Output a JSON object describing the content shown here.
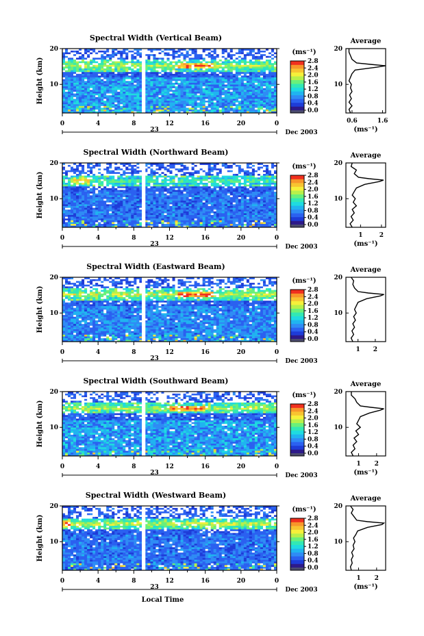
{
  "figure": {
    "xaxis_label": "Local Time",
    "date_label": "Dec 2003",
    "day_label": "23",
    "unit_label": "(ms⁻¹)",
    "ylabel": "Height (km)",
    "avg_title": "Average"
  },
  "colors": {
    "colormap": [
      "#2d1a8a",
      "#1e3cd8",
      "#2b61f0",
      "#2f8cf5",
      "#20b4f0",
      "#1fdbe0",
      "#32e8b4",
      "#6af07a",
      "#b8f04a",
      "#f6f03a",
      "#f8c430",
      "#f8962a",
      "#f0301e"
    ],
    "cbar_bottom": "#4b4b6e",
    "plot_bg": "#3055e0",
    "gap": "#ffffff"
  },
  "chart_data": [
    {
      "type": "heatmap",
      "title": "Spectral Width (Vertical Beam)",
      "x_range_hours": [
        0,
        24
      ],
      "x_ticks": [
        "0",
        "4",
        "8",
        "12",
        "16",
        "20",
        "0"
      ],
      "y_range_km": [
        2,
        20
      ],
      "y_ticks": [
        "20",
        "10"
      ],
      "colorbar": {
        "range": [
          0.0,
          2.8
        ],
        "ticks": [
          "2.8",
          "2.4",
          "2.0",
          "1.6",
          "1.2",
          "0.8",
          "0.4",
          "0.0"
        ]
      },
      "data_gap_hours": [
        8.9,
        9.3
      ],
      "features": [
        {
          "name": "tropopause layer",
          "height_km": 15.2,
          "value": 2.6,
          "strongest_hours": [
            13,
            17
          ]
        },
        {
          "name": "lower troposphere",
          "height_km_range": [
            2,
            12
          ],
          "value": 0.8
        },
        {
          "name": "upper region",
          "height_km_range": [
            16,
            20
          ],
          "value": 0.3,
          "sparse": true
        }
      ],
      "average": {
        "title": "Average",
        "xlabel": "(ms⁻¹)",
        "x_range": [
          0.4,
          1.7
        ],
        "x_ticks": [
          "0.6",
          "1.6"
        ],
        "y_ticks": [
          "20",
          "10"
        ],
        "profile": [
          [
            0.55,
            2
          ],
          [
            0.5,
            3
          ],
          [
            0.6,
            4
          ],
          [
            0.5,
            5
          ],
          [
            0.58,
            6
          ],
          [
            0.52,
            7
          ],
          [
            0.6,
            8
          ],
          [
            0.55,
            9
          ],
          [
            0.58,
            10
          ],
          [
            0.5,
            11
          ],
          [
            0.55,
            12
          ],
          [
            0.6,
            13
          ],
          [
            0.7,
            14
          ],
          [
            1.4,
            14.8
          ],
          [
            1.7,
            15.2
          ],
          [
            1.2,
            15.6
          ],
          [
            0.75,
            16
          ],
          [
            0.6,
            17
          ],
          [
            0.55,
            18
          ],
          [
            0.5,
            19
          ],
          [
            0.5,
            20
          ]
        ]
      }
    },
    {
      "type": "heatmap",
      "title": "Spectral Width (Northward Beam)",
      "x_range_hours": [
        0,
        24
      ],
      "x_ticks": [
        "0",
        "4",
        "8",
        "12",
        "16",
        "20",
        "0"
      ],
      "y_range_km": [
        2,
        20
      ],
      "y_ticks": [
        "20",
        "10"
      ],
      "colorbar": {
        "range": [
          0.0,
          2.8
        ],
        "ticks": [
          "2.8",
          "2.4",
          "2.0",
          "1.6",
          "1.2",
          "0.8",
          "0.4",
          "0.0"
        ]
      },
      "data_gap_hours": [
        8.9,
        9.3
      ],
      "features": [
        {
          "name": "tropopause layer",
          "height_km": 15.0,
          "value": 2.2,
          "strongest_hours": [
            1,
            3
          ]
        },
        {
          "name": "lower troposphere",
          "height_km_range": [
            2,
            12
          ],
          "value": 0.6
        },
        {
          "name": "upper region",
          "height_km_range": [
            16,
            20
          ],
          "value": 0.3,
          "sparse": true
        }
      ],
      "average": {
        "title": "Average",
        "xlabel": "(ms⁻¹)",
        "x_range": [
          0.3,
          2.2
        ],
        "x_ticks": [
          "1",
          "2"
        ],
        "y_ticks": [
          "20",
          "10"
        ],
        "profile": [
          [
            0.6,
            2
          ],
          [
            0.5,
            3
          ],
          [
            0.65,
            4
          ],
          [
            0.55,
            5
          ],
          [
            0.7,
            6
          ],
          [
            0.6,
            7
          ],
          [
            0.8,
            8
          ],
          [
            0.65,
            9
          ],
          [
            0.75,
            10
          ],
          [
            0.6,
            11
          ],
          [
            0.7,
            12
          ],
          [
            0.8,
            13
          ],
          [
            1.2,
            14
          ],
          [
            1.9,
            14.8
          ],
          [
            2.1,
            15.2
          ],
          [
            1.4,
            15.6
          ],
          [
            0.9,
            16
          ],
          [
            0.7,
            17
          ],
          [
            0.8,
            18
          ],
          [
            0.55,
            19
          ],
          [
            0.6,
            20
          ]
        ]
      }
    },
    {
      "type": "heatmap",
      "title": "Spectral Width (Eastward Beam)",
      "x_range_hours": [
        0,
        24
      ],
      "x_ticks": [
        "0",
        "4",
        "8",
        "12",
        "16",
        "20",
        "0"
      ],
      "y_range_km": [
        2,
        20
      ],
      "y_ticks": [
        "20",
        "10"
      ],
      "colorbar": {
        "range": [
          0.0,
          2.8
        ],
        "ticks": [
          "2.8",
          "2.4",
          "2.0",
          "1.6",
          "1.2",
          "0.8",
          "0.4",
          "0.0"
        ]
      },
      "data_gap_hours": [
        8.9,
        9.3
      ],
      "features": [
        {
          "name": "tropopause layer",
          "height_km": 15.2,
          "value": 2.7,
          "strongest_hours": [
            13,
            17
          ]
        },
        {
          "name": "lower troposphere",
          "height_km_range": [
            2,
            12
          ],
          "value": 0.7
        },
        {
          "name": "upper region",
          "height_km_range": [
            16,
            20
          ],
          "value": 0.3,
          "sparse": true
        }
      ],
      "average": {
        "title": "Average",
        "xlabel": "",
        "x_range": [
          0.3,
          2.6
        ],
        "x_ticks": [
          "1",
          "2"
        ],
        "y_ticks": [
          "20",
          "10"
        ],
        "profile": [
          [
            0.7,
            2
          ],
          [
            0.6,
            3
          ],
          [
            0.75,
            4
          ],
          [
            0.65,
            5
          ],
          [
            0.8,
            6
          ],
          [
            0.7,
            7
          ],
          [
            0.85,
            8
          ],
          [
            0.75,
            9
          ],
          [
            0.9,
            10
          ],
          [
            0.8,
            11
          ],
          [
            0.9,
            12
          ],
          [
            1.0,
            13
          ],
          [
            1.5,
            14
          ],
          [
            2.3,
            14.8
          ],
          [
            2.5,
            15.2
          ],
          [
            1.6,
            15.6
          ],
          [
            1.0,
            16
          ],
          [
            0.8,
            17
          ],
          [
            0.7,
            18
          ],
          [
            0.75,
            19
          ],
          [
            0.6,
            20
          ]
        ]
      }
    },
    {
      "type": "heatmap",
      "title": "Spectral Width (Southward Beam)",
      "x_range_hours": [
        0,
        24
      ],
      "x_ticks": [
        "0",
        "4",
        "8",
        "12",
        "16",
        "20",
        "0"
      ],
      "y_range_km": [
        2,
        20
      ],
      "y_ticks": [
        "20",
        "10"
      ],
      "colorbar": {
        "range": [
          0.0,
          2.8
        ],
        "ticks": [
          "2.8",
          "2.4",
          "2.0",
          "1.6",
          "1.2",
          "0.8",
          "0.4",
          "0.0"
        ]
      },
      "data_gap_hours": [
        8.9,
        9.3
      ],
      "features": [
        {
          "name": "tropopause layer",
          "height_km": 15.4,
          "value": 2.6,
          "strongest_hours": [
            12,
            16
          ]
        },
        {
          "name": "lower troposphere",
          "height_km_range": [
            2,
            12
          ],
          "value": 0.8
        },
        {
          "name": "upper region",
          "height_km_range": [
            16,
            20
          ],
          "value": 0.3,
          "sparse": true
        }
      ],
      "average": {
        "title": "Average",
        "xlabel": "(ms⁻¹)",
        "x_range": [
          0.3,
          2.5
        ],
        "x_ticks": [
          "1",
          "2"
        ],
        "y_ticks": [
          "20",
          "10"
        ],
        "profile": [
          [
            0.7,
            2
          ],
          [
            0.6,
            3
          ],
          [
            0.8,
            4
          ],
          [
            0.7,
            5
          ],
          [
            0.9,
            6
          ],
          [
            0.75,
            7
          ],
          [
            1.0,
            8
          ],
          [
            0.85,
            9
          ],
          [
            1.1,
            10
          ],
          [
            0.9,
            11
          ],
          [
            1.0,
            12
          ],
          [
            1.1,
            13
          ],
          [
            1.6,
            14
          ],
          [
            2.2,
            14.8
          ],
          [
            2.4,
            15.2
          ],
          [
            1.7,
            15.6
          ],
          [
            1.1,
            16
          ],
          [
            0.9,
            17
          ],
          [
            0.8,
            18
          ],
          [
            0.6,
            19
          ],
          [
            0.6,
            20
          ]
        ]
      }
    },
    {
      "type": "heatmap",
      "title": "Spectral Width (Westward Beam)",
      "x_range_hours": [
        0,
        24
      ],
      "x_ticks": [
        "0",
        "4",
        "8",
        "12",
        "16",
        "20",
        "0"
      ],
      "y_range_km": [
        2,
        20
      ],
      "y_ticks": [
        "20",
        "10"
      ],
      "colorbar": {
        "range": [
          0.0,
          2.8
        ],
        "ticks": [
          "2.8",
          "2.4",
          "2.0",
          "1.6",
          "1.2",
          "0.8",
          "0.4",
          "0.0"
        ]
      },
      "data_gap_hours": [
        8.9,
        9.3
      ],
      "features": [
        {
          "name": "tropopause layer",
          "height_km": 15.0,
          "value": 2.7,
          "strongest_hours": [
            0,
            1
          ]
        },
        {
          "name": "lower troposphere",
          "height_km_range": [
            2,
            12
          ],
          "value": 0.6
        },
        {
          "name": "upper region",
          "height_km_range": [
            16,
            20
          ],
          "value": 0.3,
          "sparse": true
        }
      ],
      "average": {
        "title": "Average",
        "xlabel": "(ms⁻¹)",
        "x_range": [
          0.3,
          2.5
        ],
        "x_ticks": [
          "1",
          "2"
        ],
        "y_ticks": [
          "20",
          "10"
        ],
        "profile": [
          [
            0.6,
            2
          ],
          [
            0.55,
            3
          ],
          [
            0.65,
            4
          ],
          [
            0.6,
            5
          ],
          [
            0.7,
            6
          ],
          [
            0.62,
            7
          ],
          [
            0.75,
            8
          ],
          [
            0.7,
            9
          ],
          [
            0.8,
            10
          ],
          [
            0.72,
            11
          ],
          [
            0.85,
            12
          ],
          [
            0.95,
            13
          ],
          [
            1.5,
            14
          ],
          [
            2.3,
            14.8
          ],
          [
            2.4,
            15.2
          ],
          [
            1.5,
            15.6
          ],
          [
            0.9,
            16
          ],
          [
            0.75,
            17
          ],
          [
            0.6,
            18
          ],
          [
            0.7,
            19
          ],
          [
            0.55,
            20
          ]
        ]
      }
    }
  ]
}
